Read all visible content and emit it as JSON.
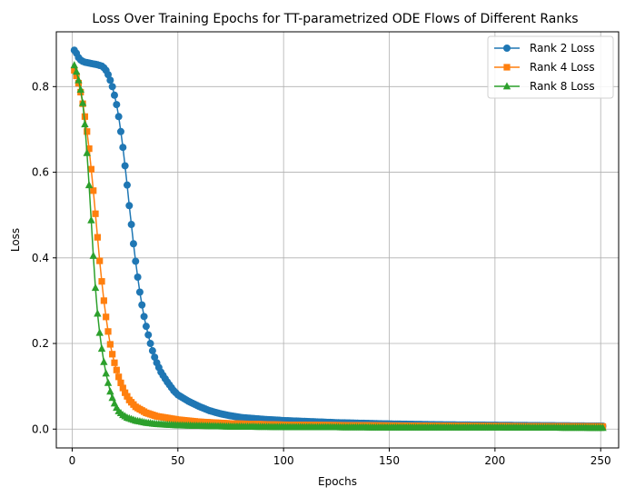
{
  "chart_data": {
    "type": "line",
    "title": "Loss Over Training Epochs for TT-parametrized ODE Flows of Different Ranks",
    "xlabel": "Epochs",
    "ylabel": "Loss",
    "xlim": [
      -7.5,
      258.5
    ],
    "ylim": [
      -0.044,
      0.928
    ],
    "xticks": [
      0,
      50,
      100,
      150,
      200,
      250
    ],
    "yticks": [
      0.0,
      0.2,
      0.4,
      0.6,
      0.8
    ],
    "xtick_labels": [
      "0",
      "50",
      "100",
      "150",
      "200",
      "250"
    ],
    "ytick_labels": [
      "0.0",
      "0.2",
      "0.4",
      "0.6",
      "0.8"
    ],
    "grid": true,
    "legend_position": "top-right",
    "epochs": [
      1,
      251
    ],
    "series": [
      {
        "name": "Rank 2 Loss",
        "color": "#1f77b4",
        "marker": "circle",
        "knots": [
          [
            1,
            0.885
          ],
          [
            2,
            0.878
          ],
          [
            3,
            0.868
          ],
          [
            4,
            0.862
          ],
          [
            5,
            0.859
          ],
          [
            6,
            0.857
          ],
          [
            8,
            0.855
          ],
          [
            10,
            0.853
          ],
          [
            12,
            0.851
          ],
          [
            14,
            0.848
          ],
          [
            15,
            0.844
          ],
          [
            16,
            0.838
          ],
          [
            17,
            0.828
          ],
          [
            18,
            0.815
          ],
          [
            19,
            0.8
          ],
          [
            20,
            0.78
          ],
          [
            21,
            0.758
          ],
          [
            22,
            0.73
          ],
          [
            23,
            0.695
          ],
          [
            24,
            0.658
          ],
          [
            25,
            0.615
          ],
          [
            26,
            0.57
          ],
          [
            27,
            0.522
          ],
          [
            28,
            0.478
          ],
          [
            29,
            0.433
          ],
          [
            30,
            0.392
          ],
          [
            31,
            0.355
          ],
          [
            32,
            0.32
          ],
          [
            33,
            0.29
          ],
          [
            34,
            0.263
          ],
          [
            35,
            0.24
          ],
          [
            36,
            0.22
          ],
          [
            37,
            0.2
          ],
          [
            38,
            0.183
          ],
          [
            39,
            0.168
          ],
          [
            40,
            0.155
          ],
          [
            42,
            0.133
          ],
          [
            45,
            0.11
          ],
          [
            48,
            0.09
          ],
          [
            50,
            0.08
          ],
          [
            55,
            0.065
          ],
          [
            60,
            0.053
          ],
          [
            65,
            0.043
          ],
          [
            70,
            0.036
          ],
          [
            75,
            0.031
          ],
          [
            80,
            0.027
          ],
          [
            90,
            0.023
          ],
          [
            100,
            0.02
          ],
          [
            110,
            0.018
          ],
          [
            125,
            0.015
          ],
          [
            150,
            0.012
          ],
          [
            175,
            0.01
          ],
          [
            200,
            0.009
          ],
          [
            225,
            0.008
          ],
          [
            251,
            0.007
          ]
        ]
      },
      {
        "name": "Rank 4 Loss",
        "color": "#ff7f0e",
        "marker": "square",
        "knots": [
          [
            1,
            0.838
          ],
          [
            2,
            0.825
          ],
          [
            3,
            0.808
          ],
          [
            4,
            0.787
          ],
          [
            5,
            0.76
          ],
          [
            6,
            0.73
          ],
          [
            7,
            0.695
          ],
          [
            8,
            0.655
          ],
          [
            9,
            0.607
          ],
          [
            10,
            0.557
          ],
          [
            11,
            0.503
          ],
          [
            12,
            0.448
          ],
          [
            13,
            0.393
          ],
          [
            14,
            0.345
          ],
          [
            15,
            0.3
          ],
          [
            16,
            0.262
          ],
          [
            17,
            0.228
          ],
          [
            18,
            0.198
          ],
          [
            19,
            0.175
          ],
          [
            20,
            0.155
          ],
          [
            21,
            0.138
          ],
          [
            22,
            0.122
          ],
          [
            23,
            0.108
          ],
          [
            24,
            0.096
          ],
          [
            25,
            0.085
          ],
          [
            27,
            0.068
          ],
          [
            30,
            0.052
          ],
          [
            35,
            0.038
          ],
          [
            40,
            0.03
          ],
          [
            50,
            0.022
          ],
          [
            60,
            0.017
          ],
          [
            75,
            0.013
          ],
          [
            100,
            0.01
          ],
          [
            150,
            0.008
          ],
          [
            200,
            0.007
          ],
          [
            251,
            0.006
          ]
        ]
      },
      {
        "name": "Rank 8 Loss",
        "color": "#2ca02c",
        "marker": "triangle",
        "knots": [
          [
            1,
            0.85
          ],
          [
            2,
            0.835
          ],
          [
            3,
            0.815
          ],
          [
            4,
            0.793
          ],
          [
            5,
            0.762
          ],
          [
            6,
            0.712
          ],
          [
            7,
            0.645
          ],
          [
            8,
            0.57
          ],
          [
            9,
            0.488
          ],
          [
            10,
            0.405
          ],
          [
            11,
            0.33
          ],
          [
            12,
            0.27
          ],
          [
            13,
            0.225
          ],
          [
            14,
            0.188
          ],
          [
            15,
            0.157
          ],
          [
            16,
            0.13
          ],
          [
            17,
            0.108
          ],
          [
            18,
            0.088
          ],
          [
            19,
            0.073
          ],
          [
            20,
            0.06
          ],
          [
            21,
            0.05
          ],
          [
            22,
            0.042
          ],
          [
            24,
            0.033
          ],
          [
            26,
            0.027
          ],
          [
            30,
            0.02
          ],
          [
            35,
            0.015
          ],
          [
            40,
            0.012
          ],
          [
            50,
            0.009
          ],
          [
            75,
            0.006
          ],
          [
            100,
            0.005
          ],
          [
            150,
            0.004
          ],
          [
            200,
            0.004
          ],
          [
            251,
            0.003
          ]
        ]
      }
    ]
  }
}
